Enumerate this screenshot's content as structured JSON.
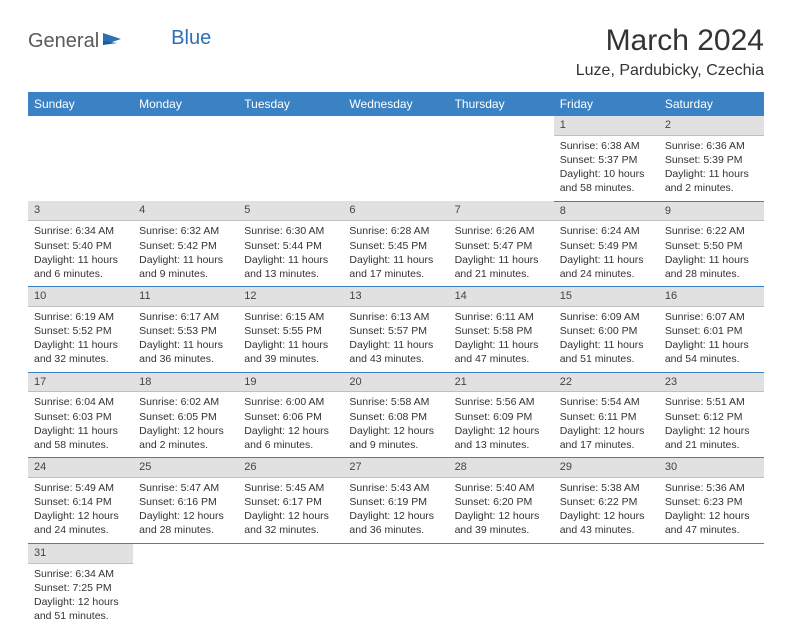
{
  "logo": {
    "part1": "General",
    "part2": "Blue"
  },
  "title": "March 2024",
  "location": "Luze, Pardubicky, Czechia",
  "colors": {
    "header_bg": "#3b82c4",
    "header_text": "#ffffff",
    "daynum_bg": "#e1e1e1",
    "row_border": "#3b82c4",
    "logo_blue": "#2d6fb5",
    "logo_gray": "#5a5a5a"
  },
  "day_headers": [
    "Sunday",
    "Monday",
    "Tuesday",
    "Wednesday",
    "Thursday",
    "Friday",
    "Saturday"
  ],
  "weeks": [
    {
      "nums": [
        "",
        "",
        "",
        "",
        "",
        "1",
        "2"
      ],
      "cells": [
        "",
        "",
        "",
        "",
        "",
        "Sunrise: 6:38 AM\nSunset: 5:37 PM\nDaylight: 10 hours and 58 minutes.",
        "Sunrise: 6:36 AM\nSunset: 5:39 PM\nDaylight: 11 hours and 2 minutes."
      ]
    },
    {
      "nums": [
        "3",
        "4",
        "5",
        "6",
        "7",
        "8",
        "9"
      ],
      "cells": [
        "Sunrise: 6:34 AM\nSunset: 5:40 PM\nDaylight: 11 hours and 6 minutes.",
        "Sunrise: 6:32 AM\nSunset: 5:42 PM\nDaylight: 11 hours and 9 minutes.",
        "Sunrise: 6:30 AM\nSunset: 5:44 PM\nDaylight: 11 hours and 13 minutes.",
        "Sunrise: 6:28 AM\nSunset: 5:45 PM\nDaylight: 11 hours and 17 minutes.",
        "Sunrise: 6:26 AM\nSunset: 5:47 PM\nDaylight: 11 hours and 21 minutes.",
        "Sunrise: 6:24 AM\nSunset: 5:49 PM\nDaylight: 11 hours and 24 minutes.",
        "Sunrise: 6:22 AM\nSunset: 5:50 PM\nDaylight: 11 hours and 28 minutes."
      ]
    },
    {
      "nums": [
        "10",
        "11",
        "12",
        "13",
        "14",
        "15",
        "16"
      ],
      "cells": [
        "Sunrise: 6:19 AM\nSunset: 5:52 PM\nDaylight: 11 hours and 32 minutes.",
        "Sunrise: 6:17 AM\nSunset: 5:53 PM\nDaylight: 11 hours and 36 minutes.",
        "Sunrise: 6:15 AM\nSunset: 5:55 PM\nDaylight: 11 hours and 39 minutes.",
        "Sunrise: 6:13 AM\nSunset: 5:57 PM\nDaylight: 11 hours and 43 minutes.",
        "Sunrise: 6:11 AM\nSunset: 5:58 PM\nDaylight: 11 hours and 47 minutes.",
        "Sunrise: 6:09 AM\nSunset: 6:00 PM\nDaylight: 11 hours and 51 minutes.",
        "Sunrise: 6:07 AM\nSunset: 6:01 PM\nDaylight: 11 hours and 54 minutes."
      ]
    },
    {
      "nums": [
        "17",
        "18",
        "19",
        "20",
        "21",
        "22",
        "23"
      ],
      "cells": [
        "Sunrise: 6:04 AM\nSunset: 6:03 PM\nDaylight: 11 hours and 58 minutes.",
        "Sunrise: 6:02 AM\nSunset: 6:05 PM\nDaylight: 12 hours and 2 minutes.",
        "Sunrise: 6:00 AM\nSunset: 6:06 PM\nDaylight: 12 hours and 6 minutes.",
        "Sunrise: 5:58 AM\nSunset: 6:08 PM\nDaylight: 12 hours and 9 minutes.",
        "Sunrise: 5:56 AM\nSunset: 6:09 PM\nDaylight: 12 hours and 13 minutes.",
        "Sunrise: 5:54 AM\nSunset: 6:11 PM\nDaylight: 12 hours and 17 minutes.",
        "Sunrise: 5:51 AM\nSunset: 6:12 PM\nDaylight: 12 hours and 21 minutes."
      ]
    },
    {
      "nums": [
        "24",
        "25",
        "26",
        "27",
        "28",
        "29",
        "30"
      ],
      "cells": [
        "Sunrise: 5:49 AM\nSunset: 6:14 PM\nDaylight: 12 hours and 24 minutes.",
        "Sunrise: 5:47 AM\nSunset: 6:16 PM\nDaylight: 12 hours and 28 minutes.",
        "Sunrise: 5:45 AM\nSunset: 6:17 PM\nDaylight: 12 hours and 32 minutes.",
        "Sunrise: 5:43 AM\nSunset: 6:19 PM\nDaylight: 12 hours and 36 minutes.",
        "Sunrise: 5:40 AM\nSunset: 6:20 PM\nDaylight: 12 hours and 39 minutes.",
        "Sunrise: 5:38 AM\nSunset: 6:22 PM\nDaylight: 12 hours and 43 minutes.",
        "Sunrise: 5:36 AM\nSunset: 6:23 PM\nDaylight: 12 hours and 47 minutes."
      ]
    },
    {
      "nums": [
        "31",
        "",
        "",
        "",
        "",
        "",
        ""
      ],
      "cells": [
        "Sunrise: 6:34 AM\nSunset: 7:25 PM\nDaylight: 12 hours and 51 minutes.",
        "",
        "",
        "",
        "",
        "",
        ""
      ]
    }
  ]
}
